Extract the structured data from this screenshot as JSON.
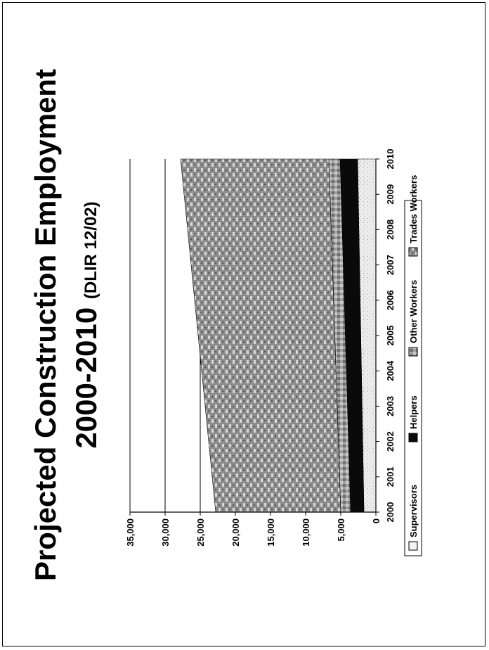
{
  "title": {
    "main": "Projected Construction Employment",
    "year_range": "2000-2010",
    "source": "(DLIR 12/02)"
  },
  "chart_data": {
    "type": "area",
    "stacked": true,
    "title": "Projected Construction Employment 2000-2010 (DLIR 12/02)",
    "categories": [
      "2000",
      "2001",
      "2002",
      "2003",
      "2004",
      "2005",
      "2006",
      "2007",
      "2008",
      "2009",
      "2010"
    ],
    "ylim": [
      0,
      35000
    ],
    "yticks": [
      0,
      5000,
      10000,
      15000,
      20000,
      25000,
      30000,
      35000
    ],
    "ytick_labels": [
      "0",
      "5,000",
      "10,000",
      "15,000",
      "20,000",
      "25,000",
      "30,000",
      "35,000"
    ],
    "grid": "horizontal",
    "legend_position": "bottom",
    "series": [
      {
        "name": "Supervisors",
        "color": "#e6e6e6",
        "values": [
          1700,
          1790,
          1880,
          1970,
          2060,
          2150,
          2240,
          2330,
          2420,
          2510,
          2600
        ]
      },
      {
        "name": "Helpers",
        "color": "#0a0a0a",
        "values": [
          1900,
          1960,
          2020,
          2080,
          2140,
          2200,
          2260,
          2320,
          2380,
          2440,
          2500
        ]
      },
      {
        "name": "Other Workers",
        "color": "#9a9a9a",
        "values": [
          1400,
          1420,
          1440,
          1460,
          1480,
          1500,
          1520,
          1540,
          1560,
          1580,
          1600
        ]
      },
      {
        "name": "Trades Workers",
        "color": "#8a8a8a",
        "values": [
          17800,
          18130,
          18460,
          18790,
          19120,
          19450,
          19780,
          20110,
          20440,
          20770,
          21100
        ]
      }
    ]
  }
}
